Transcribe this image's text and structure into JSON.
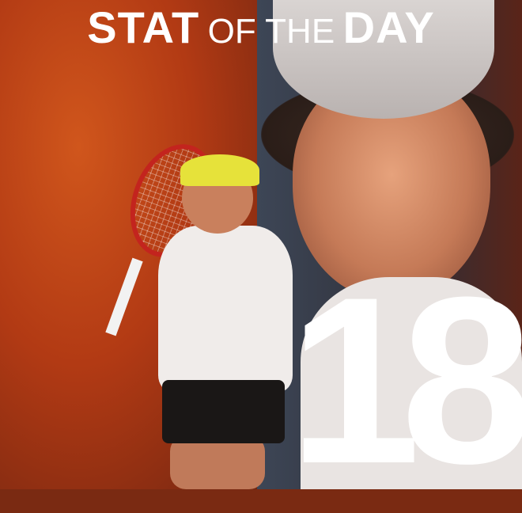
{
  "title": {
    "part1": "STAT",
    "part2": "OF THE",
    "part3": "DAY"
  },
  "stat": {
    "value": "18"
  },
  "colors": {
    "left_bg": "#b23a14",
    "right_bg": "#2f2f38",
    "text": "#ffffff"
  }
}
